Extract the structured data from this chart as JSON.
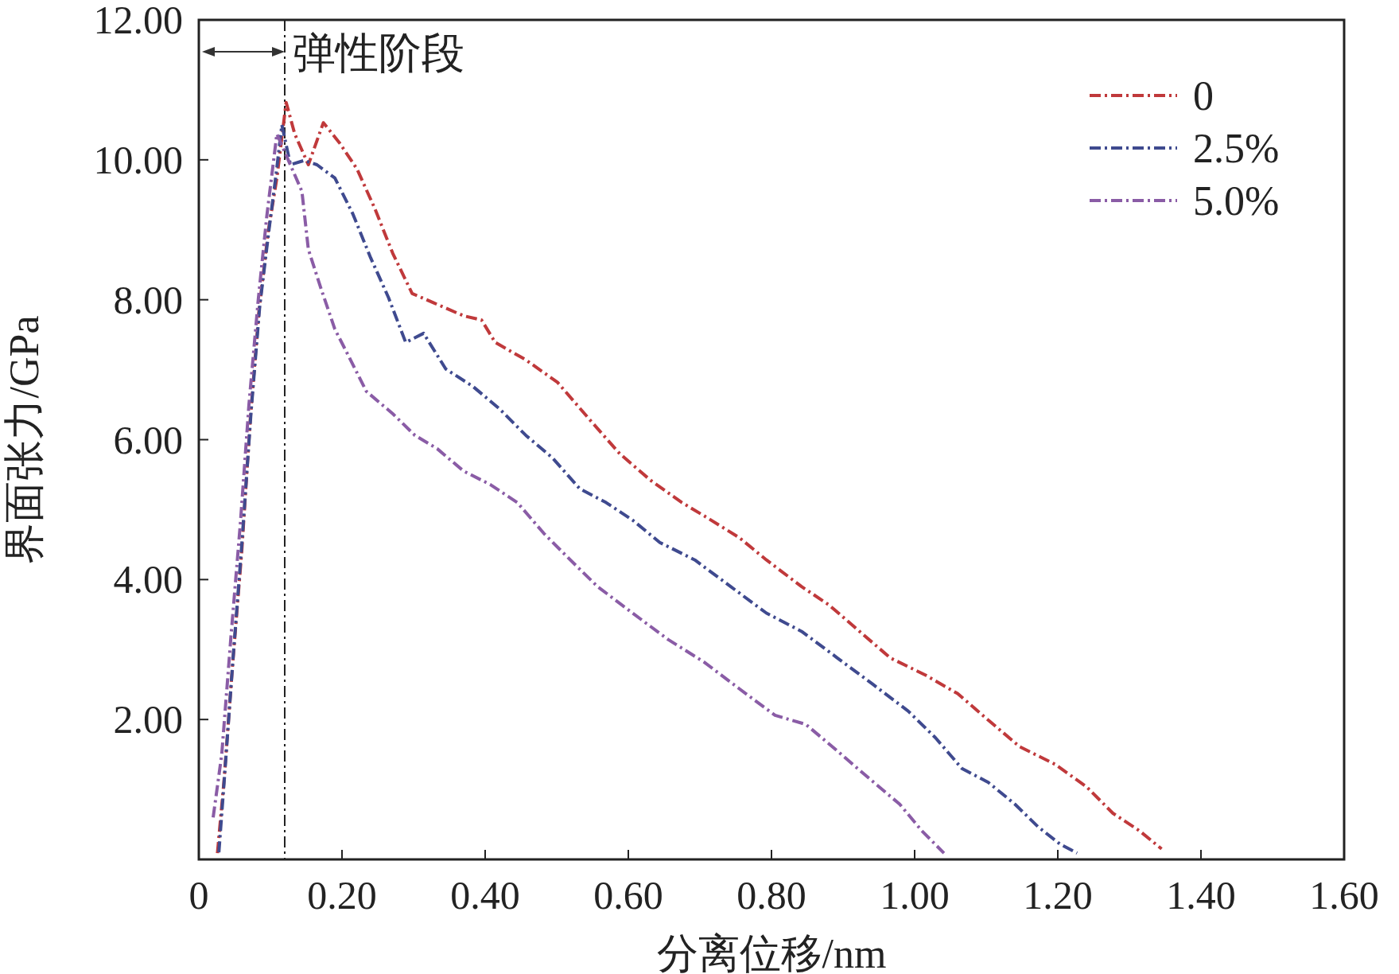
{
  "chart_data": {
    "type": "line",
    "xlabel": "分离位移/nm",
    "ylabel": "界面张力/GPa",
    "xlim": [
      0,
      1.6
    ],
    "ylim": [
      0,
      12
    ],
    "xticks": [
      {
        "value": 0,
        "label": "0"
      },
      {
        "value": 0.2,
        "label": "0.20"
      },
      {
        "value": 0.4,
        "label": "0.40"
      },
      {
        "value": 0.6,
        "label": "0.60"
      },
      {
        "value": 0.8,
        "label": "0.80"
      },
      {
        "value": 1.0,
        "label": "1.00"
      },
      {
        "value": 1.2,
        "label": "1.20"
      },
      {
        "value": 1.4,
        "label": "1.40"
      },
      {
        "value": 1.6,
        "label": "1.60"
      }
    ],
    "yticks": [
      {
        "value": 2,
        "label": "2.00"
      },
      {
        "value": 4,
        "label": "4.00"
      },
      {
        "value": 6,
        "label": "6.00"
      },
      {
        "value": 8,
        "label": "8.00"
      },
      {
        "value": 10,
        "label": "10.00"
      },
      {
        "value": 12,
        "label": "12.00"
      }
    ],
    "ref_lines": [
      {
        "axis": "x",
        "value": 0.12,
        "label": "弹性阶段",
        "line_style": "dashed",
        "color": "#222222"
      }
    ],
    "legend": "top right",
    "line_style": "dashed",
    "grid": false,
    "series": [
      {
        "name": "0",
        "color": "#c0393b",
        "x": [
          0.026,
          0.035,
          0.047,
          0.06,
          0.072,
          0.084,
          0.097,
          0.109,
          0.122,
          0.134,
          0.153,
          0.174,
          0.196,
          0.221,
          0.246,
          0.271,
          0.298,
          0.327,
          0.37,
          0.395,
          0.414,
          0.457,
          0.501,
          0.544,
          0.588,
          0.631,
          0.675,
          0.706,
          0.755,
          0.793,
          0.842,
          0.88,
          0.923,
          0.966,
          1.016,
          1.06,
          1.103,
          1.147,
          1.196,
          1.24,
          1.277,
          1.314,
          1.345
        ],
        "values": [
          0.09,
          1.1,
          2.76,
          4.41,
          6.31,
          7.84,
          8.98,
          9.74,
          10.82,
          10.37,
          9.93,
          10.53,
          10.25,
          9.87,
          9.3,
          8.66,
          8.09,
          7.96,
          7.77,
          7.71,
          7.39,
          7.14,
          6.82,
          6.31,
          5.8,
          5.42,
          5.1,
          4.91,
          4.6,
          4.28,
          3.9,
          3.64,
          3.26,
          2.88,
          2.63,
          2.37,
          1.99,
          1.61,
          1.36,
          1.04,
          0.66,
          0.41,
          0.15
        ]
      },
      {
        "name": "2.5%",
        "color": "#3f4a8f",
        "x": [
          0.028,
          0.036,
          0.048,
          0.06,
          0.073,
          0.085,
          0.098,
          0.108,
          0.116,
          0.128,
          0.147,
          0.165,
          0.19,
          0.215,
          0.24,
          0.265,
          0.289,
          0.314,
          0.345,
          0.383,
          0.42,
          0.457,
          0.494,
          0.532,
          0.569,
          0.606,
          0.644,
          0.693,
          0.743,
          0.793,
          0.842,
          0.892,
          0.942,
          0.991,
          1.029,
          1.066,
          1.103,
          1.14,
          1.172,
          1.203,
          1.227
        ],
        "values": [
          0.1,
          1.2,
          2.9,
          4.5,
          6.4,
          7.9,
          9.0,
          9.8,
          10.5,
          9.93,
          9.99,
          9.93,
          9.74,
          9.23,
          8.6,
          8.03,
          7.39,
          7.52,
          7.01,
          6.76,
          6.44,
          6.06,
          5.74,
          5.3,
          5.1,
          4.85,
          4.53,
          4.28,
          3.9,
          3.52,
          3.26,
          2.88,
          2.5,
          2.12,
          1.74,
          1.3,
          1.1,
          0.79,
          0.47,
          0.22,
          0.09
        ]
      },
      {
        "name": "5.0%",
        "color": "#8a5ca6",
        "x": [
          0.02,
          0.032,
          0.045,
          0.058,
          0.07,
          0.083,
          0.095,
          0.109,
          0.144,
          0.153,
          0.171,
          0.19,
          0.209,
          0.234,
          0.271,
          0.302,
          0.333,
          0.37,
          0.407,
          0.445,
          0.482,
          0.519,
          0.557,
          0.606,
          0.656,
          0.706,
          0.755,
          0.805,
          0.848,
          0.892,
          0.935,
          0.979,
          1.01,
          1.041
        ],
        "values": [
          0.6,
          1.5,
          3.2,
          4.8,
          6.5,
          8.0,
          9.2,
          10.37,
          9.55,
          8.72,
          8.15,
          7.58,
          7.2,
          6.69,
          6.37,
          6.06,
          5.87,
          5.55,
          5.36,
          5.1,
          4.66,
          4.28,
          3.9,
          3.52,
          3.14,
          2.82,
          2.44,
          2.06,
          1.93,
          1.55,
          1.17,
          0.79,
          0.41,
          0.09
        ]
      }
    ]
  }
}
